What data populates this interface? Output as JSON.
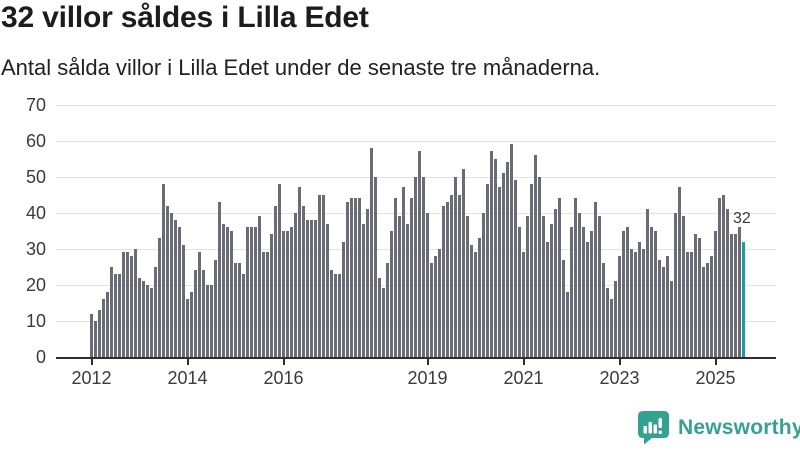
{
  "header": {
    "title": "32 villor såldes i Lilla Edet",
    "subtitle": "Antal sålda villor i Lilla Edet under de senaste tre månaderna."
  },
  "branding": {
    "name": "Newsworthy",
    "color": "#35a192",
    "icon": "newsworthy-speech-bubble-bar-chart-icon"
  },
  "colors": {
    "bar": "#6a6b74",
    "bar_highlight": "#12a0a5",
    "gridline": "#e3e3e3",
    "axis": "#2e2e2e",
    "tick_label": "#3b3b3b",
    "annotation": "#3a3a3a"
  },
  "chart_data": {
    "type": "bar",
    "title": "32 villor såldes i Lilla Edet",
    "subtitle": "Antal sålda villor i Lilla Edet under de senaste tre månaderna.",
    "unit": "sålda villor (rullande tre månader)",
    "x_start": "2012-01",
    "x_interval": "month",
    "grid": "horizontal",
    "legend": "none",
    "ylim": [
      0,
      70
    ],
    "yticks": [
      0,
      10,
      20,
      30,
      40,
      50,
      60,
      70
    ],
    "xticks": [
      {
        "label": "2012",
        "month_index": 0
      },
      {
        "label": "2014",
        "month_index": 24
      },
      {
        "label": "2016",
        "month_index": 48
      },
      {
        "label": "2019",
        "month_index": 84
      },
      {
        "label": "2021",
        "month_index": 108
      },
      {
        "label": "2023",
        "month_index": 132
      },
      {
        "label": "2025",
        "month_index": 156
      }
    ],
    "values": [
      12,
      10,
      13,
      16,
      18,
      25,
      23,
      23,
      29,
      29,
      28,
      30,
      22,
      21,
      20,
      19,
      25,
      33,
      48,
      42,
      40,
      38,
      36,
      31,
      16,
      18,
      24,
      29,
      24,
      20,
      20,
      27,
      43,
      37,
      36,
      35,
      26,
      26,
      23,
      36,
      36,
      36,
      39,
      29,
      29,
      34,
      42,
      48,
      35,
      35,
      36,
      40,
      47,
      42,
      38,
      38,
      38,
      45,
      45,
      37,
      24,
      23,
      23,
      32,
      43,
      44,
      44,
      44,
      37,
      41,
      58,
      50,
      22,
      19,
      26,
      35,
      44,
      39,
      47,
      37,
      44,
      50,
      57,
      50,
      40,
      26,
      28,
      30,
      42,
      43,
      45,
      50,
      45,
      52,
      39,
      31,
      29,
      33,
      40,
      48,
      57,
      55,
      47,
      51,
      54,
      59,
      49,
      36,
      29,
      39,
      48,
      56,
      50,
      39,
      32,
      37,
      41,
      44,
      27,
      18,
      36,
      44,
      40,
      36,
      32,
      35,
      43,
      39,
      26,
      19,
      16,
      21,
      28,
      35,
      36,
      30,
      29,
      32,
      30,
      41,
      36,
      35,
      27,
      25,
      28,
      21,
      40,
      47,
      39,
      29,
      29,
      34,
      33,
      25,
      26,
      28,
      35,
      44,
      45,
      41,
      34,
      34,
      36,
      32
    ],
    "highlight_index": 163,
    "last_value_label": "32"
  }
}
